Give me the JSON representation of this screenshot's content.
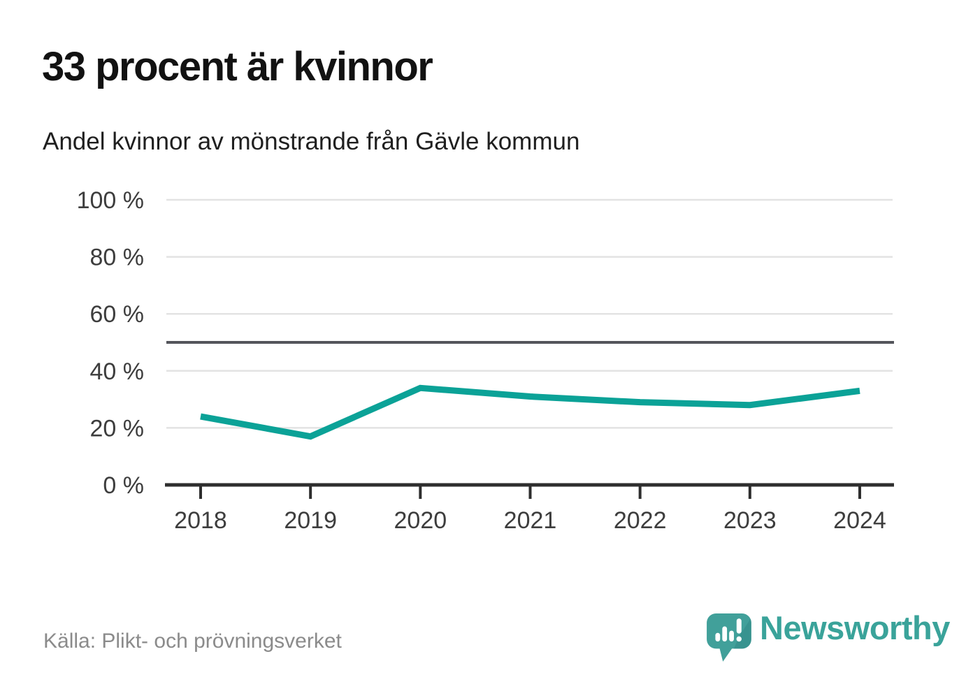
{
  "header": {
    "title": "33 procent är kvinnor",
    "subtitle": "Andel kvinnor av mönstrande från Gävle kommun"
  },
  "footer": {
    "source": "Källa: Plikt- och prövningsverket",
    "brand": "Newsworthy"
  },
  "chart_data": {
    "type": "line",
    "title": "33 procent är kvinnor",
    "subtitle": "Andel kvinnor av mönstrande från Gävle kommun",
    "categories": [
      "2018",
      "2019",
      "2020",
      "2021",
      "2022",
      "2023",
      "2024"
    ],
    "series": [
      {
        "name": "Andel kvinnor av mönstrande",
        "values": [
          24,
          17,
          34,
          31,
          29,
          28,
          33
        ]
      }
    ],
    "unit": "%",
    "ylim": [
      0,
      100
    ],
    "yticks": [
      0,
      20,
      40,
      60,
      80,
      100
    ],
    "ytick_labels": [
      "0 %",
      "20 %",
      "40 %",
      "60 %",
      "80 %",
      "100 %"
    ],
    "reference_line": {
      "value": 50
    },
    "grid": true,
    "legend": "none",
    "colors": {
      "line": "#0ba297",
      "gridline": "#e3e3e3",
      "reference_line": "#54555b",
      "axis": "#2e2e2e",
      "tick_label": "#3d3d3d",
      "brand_teal": "#3f9e98"
    }
  }
}
